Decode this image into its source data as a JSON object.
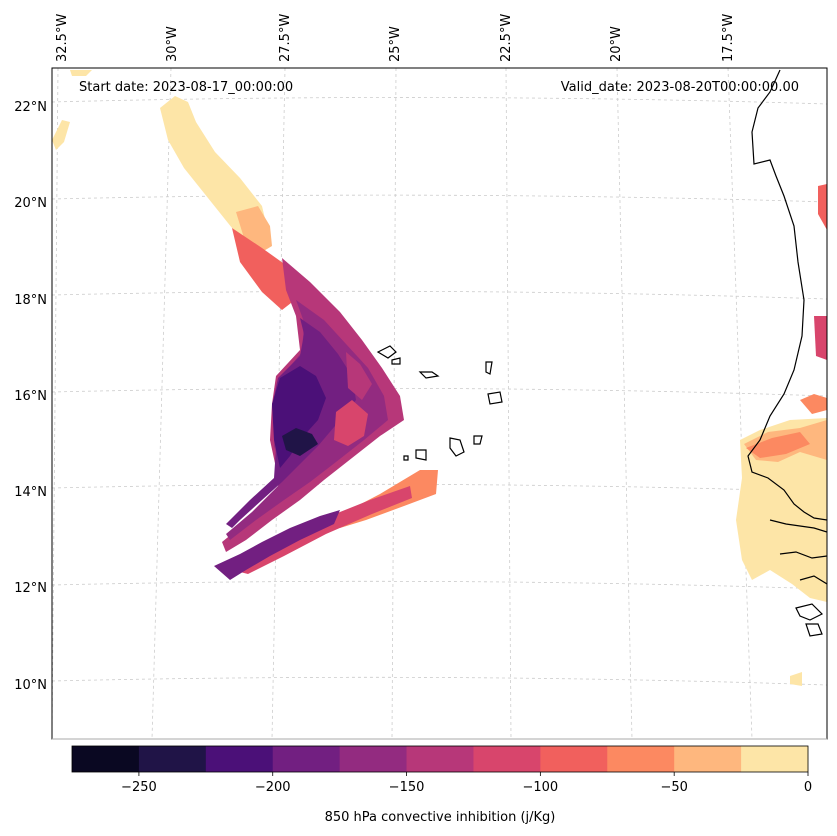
{
  "annotations": {
    "start_date": "Start date: 2023-08-17_00:00:00",
    "valid_date": "Valid_date: 2023-08-20T00:00:00.00"
  },
  "longitude_labels": [
    "32.5°W",
    "30°W",
    "27.5°W",
    "25°W",
    "22.5°W",
    "20°W",
    "17.5°W"
  ],
  "latitude_labels": [
    "22°N",
    "20°N",
    "18°N",
    "16°N",
    "14°N",
    "12°N",
    "10°N"
  ],
  "colorbar": {
    "label": "850 hPa convective inhibition (j/Kg)",
    "ticks": [
      "−250",
      "−200",
      "−150",
      "−100",
      "−50",
      "0"
    ],
    "levels": [
      -275,
      -250,
      -225,
      -200,
      -175,
      -150,
      -125,
      -100,
      -75,
      -50,
      -25,
      0
    ],
    "colors": [
      "#0a0822",
      "#201447",
      "#4b1078",
      "#721f81",
      "#932b80",
      "#b73779",
      "#d8456c",
      "#f1605d",
      "#fc8961",
      "#feb77e",
      "#fde5a7"
    ]
  },
  "field": {
    "variable": "850 hPa convective inhibition",
    "units": "j/Kg"
  }
}
